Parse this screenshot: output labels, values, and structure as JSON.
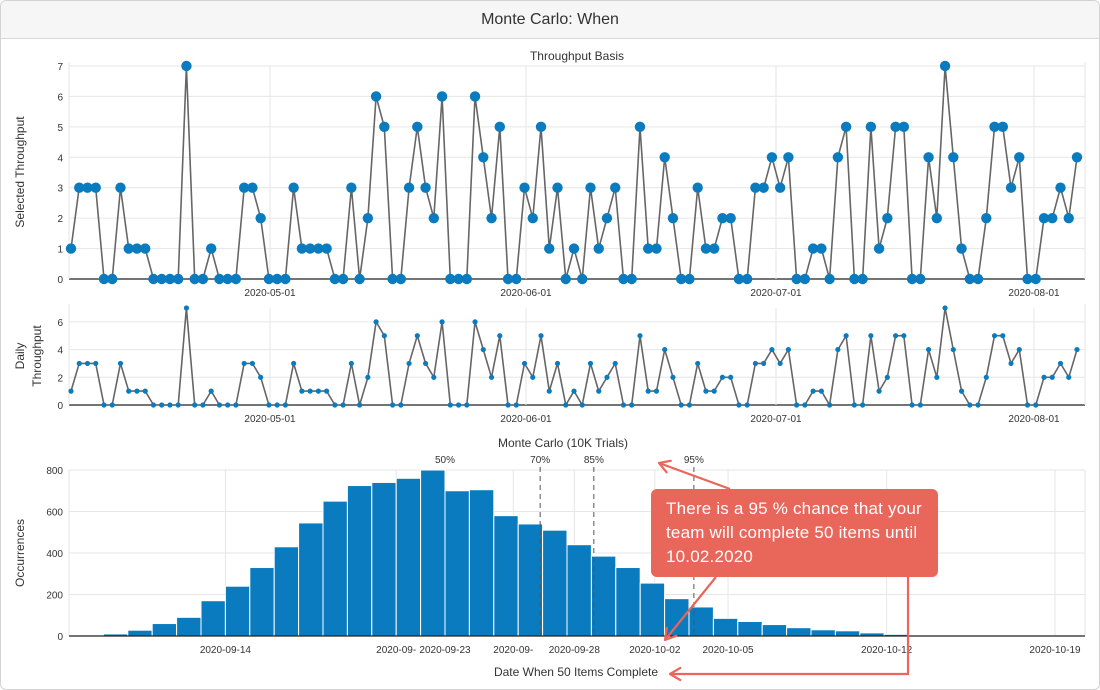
{
  "window": {
    "title": "Monte Carlo: When"
  },
  "callout": {
    "text": "There is a 95 % chance that your team will complete 50 items until 10.02.2020"
  },
  "colors": {
    "accent": "#0a7bbf",
    "line": "#666666",
    "callout": "#e8665a"
  },
  "chart_data": [
    {
      "type": "line",
      "title": "Throughput Basis",
      "ylabel": "Selected Throughput",
      "ylim": [
        0,
        7
      ],
      "yticks": [
        0,
        1,
        2,
        3,
        4,
        5,
        6,
        7
      ],
      "xticks": [
        "2020-05-01",
        "2020-06-01",
        "2020-07-01",
        "2020-08-01"
      ],
      "values": [
        1,
        3,
        3,
        3,
        0,
        0,
        3,
        1,
        1,
        1,
        0,
        0,
        0,
        0,
        7,
        0,
        0,
        1,
        0,
        0,
        0,
        3,
        3,
        2,
        0,
        0,
        0,
        3,
        1,
        1,
        1,
        1,
        0,
        0,
        3,
        0,
        2,
        6,
        5,
        0,
        0,
        3,
        5,
        3,
        2,
        6,
        0,
        0,
        0,
        6,
        4,
        2,
        5,
        0,
        0,
        3,
        2,
        5,
        1,
        3,
        0,
        1,
        0,
        3,
        1,
        2,
        3,
        0,
        0,
        5,
        1,
        1,
        4,
        2,
        0,
        0,
        3,
        1,
        1,
        2,
        2,
        0,
        0,
        3,
        3,
        4,
        3,
        4,
        0,
        0,
        1,
        1,
        0,
        4,
        5,
        0,
        0,
        5,
        1,
        2,
        5,
        5,
        0,
        0,
        4,
        2,
        7,
        4,
        1,
        0,
        0,
        2,
        5,
        5,
        3,
        4,
        0,
        0,
        2,
        2,
        3,
        2,
        4
      ]
    },
    {
      "type": "line",
      "title": "",
      "ylabel": "Daily Throughput",
      "ylim": [
        0,
        7
      ],
      "yticks": [
        0,
        2,
        4,
        6
      ],
      "xticks": [
        "2020-05-01",
        "2020-06-01",
        "2020-07-01",
        "2020-08-01"
      ],
      "values": [
        1,
        3,
        3,
        3,
        0,
        0,
        3,
        1,
        1,
        1,
        0,
        0,
        0,
        0,
        7,
        0,
        0,
        1,
        0,
        0,
        0,
        3,
        3,
        2,
        0,
        0,
        0,
        3,
        1,
        1,
        1,
        1,
        0,
        0,
        3,
        0,
        2,
        6,
        5,
        0,
        0,
        3,
        5,
        3,
        2,
        6,
        0,
        0,
        0,
        6,
        4,
        2,
        5,
        0,
        0,
        3,
        2,
        5,
        1,
        3,
        0,
        1,
        0,
        3,
        1,
        2,
        3,
        0,
        0,
        5,
        1,
        1,
        4,
        2,
        0,
        0,
        3,
        1,
        1,
        2,
        2,
        0,
        0,
        3,
        3,
        4,
        3,
        4,
        0,
        0,
        1,
        1,
        0,
        4,
        5,
        0,
        0,
        5,
        1,
        2,
        5,
        5,
        0,
        0,
        4,
        2,
        7,
        4,
        1,
        0,
        0,
        2,
        5,
        5,
        3,
        4,
        0,
        0,
        2,
        2,
        3,
        2,
        4
      ]
    },
    {
      "type": "bar",
      "title": "Monte Carlo (10K Trials)",
      "xlabel": "Date When 50 Items Complete",
      "ylabel": "Occurrences",
      "ylim": [
        0,
        800
      ],
      "yticks": [
        0,
        200,
        400,
        600,
        800
      ],
      "values": [
        5,
        10,
        28,
        60,
        90,
        170,
        240,
        330,
        430,
        545,
        650,
        725,
        740,
        760,
        800,
        700,
        705,
        580,
        540,
        510,
        440,
        385,
        330,
        255,
        180,
        140,
        85,
        70,
        55,
        40,
        30,
        25,
        15,
        8,
        4,
        2,
        1,
        1,
        1,
        1,
        0,
        0
      ],
      "xticks": [
        {
          "label": "2020-09-14",
          "bin": 6
        },
        {
          "label": "2020-09-",
          "bin": 13
        },
        {
          "label": "2020-09-23",
          "bin": 15
        },
        {
          "label": "2020-09-",
          "bin": 17.8
        },
        {
          "label": "2020-09-28",
          "bin": 20.3
        },
        {
          "label": "2020-10-02",
          "bin": 23.6
        },
        {
          "label": "2020-10-05",
          "bin": 26.6
        },
        {
          "label": "2020-10-12",
          "bin": 33.1
        },
        {
          "label": "2020-10-19",
          "bin": 40
        }
      ],
      "percentiles": [
        {
          "label": "50%",
          "bin": 15,
          "dashed": false
        },
        {
          "label": "70%",
          "bin": 18.9,
          "dashed": true
        },
        {
          "label": "85%",
          "bin": 21.1,
          "dashed": true
        },
        {
          "label": "95%",
          "bin": 25.2,
          "dashed": true
        }
      ]
    }
  ]
}
